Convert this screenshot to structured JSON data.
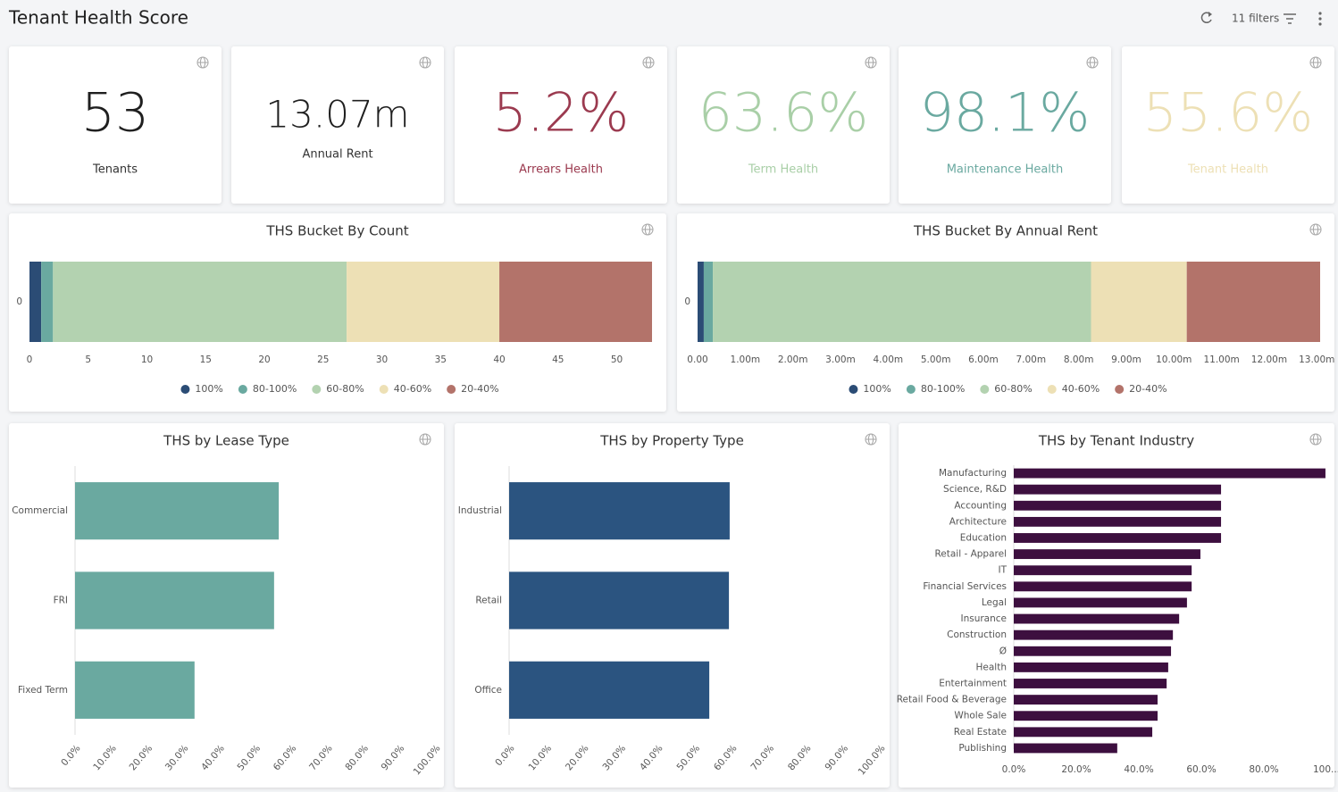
{
  "header": {
    "title": "Tenant Health Score",
    "filters": "11 filters"
  },
  "kpis": [
    {
      "value": "53",
      "label": "Tenants",
      "color": "#1f1f1f"
    },
    {
      "value": "13.07m",
      "label": "Annual Rent",
      "color": "#1f1f1f"
    },
    {
      "value": "5.2%",
      "label": "Arrears Health",
      "color": "#9b3a4f"
    },
    {
      "value": "63.6%",
      "label": "Term Health",
      "color": "#a9cfa7"
    },
    {
      "value": "98.1%",
      "label": "Maintenance Health",
      "color": "#6aa9a0"
    },
    {
      "value": "55.6%",
      "label": "Tenant Health",
      "color": "#ede0b5"
    }
  ],
  "chart_data": [
    {
      "type": "stacked-bar",
      "title": "THS Bucket By Count",
      "categories": [
        "0"
      ],
      "series": [
        {
          "name": "100%",
          "color": "#2b4c75",
          "values": [
            1
          ]
        },
        {
          "name": "80-100%",
          "color": "#6aa9a0",
          "values": [
            1
          ]
        },
        {
          "name": "60-80%",
          "color": "#b3d2b0",
          "values": [
            25
          ]
        },
        {
          "name": "40-60%",
          "color": "#ede0b5",
          "values": [
            13
          ]
        },
        {
          "name": "20-40%",
          "color": "#b3736a",
          "values": [
            13
          ]
        }
      ],
      "xlim": [
        0,
        53
      ],
      "xticks": [
        0,
        5,
        10,
        15,
        20,
        25,
        30,
        35,
        40,
        45,
        50
      ],
      "legend": "bottom"
    },
    {
      "type": "stacked-bar",
      "title": "THS Bucket By Annual Rent",
      "categories": [
        "0"
      ],
      "series": [
        {
          "name": "100%",
          "color": "#2b4c75",
          "values": [
            0.13
          ]
        },
        {
          "name": "80-100%",
          "color": "#6aa9a0",
          "values": [
            0.19
          ]
        },
        {
          "name": "60-80%",
          "color": "#b3d2b0",
          "values": [
            7.94
          ]
        },
        {
          "name": "40-60%",
          "color": "#ede0b5",
          "values": [
            2.01
          ]
        },
        {
          "name": "20-40%",
          "color": "#b3736a",
          "values": [
            2.8
          ]
        }
      ],
      "xlim": [
        0,
        13.07
      ],
      "xticks": [
        {
          "value": 0,
          "label": "0.00"
        },
        {
          "value": 1,
          "label": "1.00m"
        },
        {
          "value": 2,
          "label": "2.00m"
        },
        {
          "value": 3,
          "label": "3.00m"
        },
        {
          "value": 4,
          "label": "4.00m"
        },
        {
          "value": 5,
          "label": "5.00m"
        },
        {
          "value": 6,
          "label": "6.00m"
        },
        {
          "value": 7,
          "label": "7.00m"
        },
        {
          "value": 8,
          "label": "8.00m"
        },
        {
          "value": 9,
          "label": "9.00m"
        },
        {
          "value": 10,
          "label": "10.00m"
        },
        {
          "value": 11,
          "label": "11.00m"
        },
        {
          "value": 12,
          "label": "12.00m"
        },
        {
          "value": 13,
          "label": "13.00m"
        }
      ],
      "legend": "bottom"
    },
    {
      "type": "bar",
      "orientation": "horizontal",
      "title": "THS by Lease Type",
      "categories": [
        "Commercial",
        "FRI",
        "Fixed Term"
      ],
      "values": [
        56.6,
        55.3,
        33.2
      ],
      "color": "#6aa9a0",
      "xlim": [
        0,
        100
      ],
      "xticks": [
        {
          "value": 0,
          "label": "0.0%"
        },
        {
          "value": 10,
          "label": "10.0%"
        },
        {
          "value": 20,
          "label": "20.0%"
        },
        {
          "value": 30,
          "label": "30.0%"
        },
        {
          "value": 40,
          "label": "40.0%"
        },
        {
          "value": 50,
          "label": "50.0%"
        },
        {
          "value": 60,
          "label": "60.0%"
        },
        {
          "value": 70,
          "label": "70.0%"
        },
        {
          "value": 80,
          "label": "80.0%"
        },
        {
          "value": 90,
          "label": "90.0%"
        },
        {
          "value": 100,
          "label": "100.0%"
        }
      ]
    },
    {
      "type": "bar",
      "orientation": "horizontal",
      "title": "THS by Property Type",
      "categories": [
        "Industrial",
        "Retail",
        "Office"
      ],
      "values": [
        59.5,
        59.3,
        54.0
      ],
      "color": "#2b5480",
      "xlim": [
        0,
        100
      ],
      "xticks": [
        {
          "value": 0,
          "label": "0.0%"
        },
        {
          "value": 10,
          "label": "10.0%"
        },
        {
          "value": 20,
          "label": "20.0%"
        },
        {
          "value": 30,
          "label": "30.0%"
        },
        {
          "value": 40,
          "label": "40.0%"
        },
        {
          "value": 50,
          "label": "50.0%"
        },
        {
          "value": 60,
          "label": "60.0%"
        },
        {
          "value": 70,
          "label": "70.0%"
        },
        {
          "value": 80,
          "label": "80.0%"
        },
        {
          "value": 90,
          "label": "90.0%"
        },
        {
          "value": 100,
          "label": "100.0%"
        }
      ]
    },
    {
      "type": "bar",
      "orientation": "horizontal",
      "title": "THS by Tenant Industry",
      "categories": [
        "Manufacturing",
        "Science, R&D",
        "Accounting",
        "Architecture",
        "Education",
        "Retail - Apparel",
        "IT",
        "Financial Services",
        "Legal",
        "Insurance",
        "Construction",
        "Ø",
        "Health",
        "Entertainment",
        "Retail Food & Beverage",
        "Whole Sale",
        "Real Estate",
        "Publishing"
      ],
      "values": [
        99.7,
        66.3,
        66.3,
        66.3,
        66.3,
        59.7,
        56.9,
        56.9,
        55.4,
        52.9,
        50.9,
        50.3,
        49.4,
        48.9,
        46.0,
        46.0,
        44.3,
        33.1
      ],
      "color": "#3d0f3f",
      "xlim": [
        0,
        100
      ],
      "xticks": [
        {
          "value": 0,
          "label": "0.0%"
        },
        {
          "value": 20,
          "label": "20.0%"
        },
        {
          "value": 40,
          "label": "40.0%"
        },
        {
          "value": 60,
          "label": "60.0%"
        },
        {
          "value": 80,
          "label": "80.0%"
        },
        {
          "value": 100,
          "label": "100..."
        }
      ]
    }
  ]
}
